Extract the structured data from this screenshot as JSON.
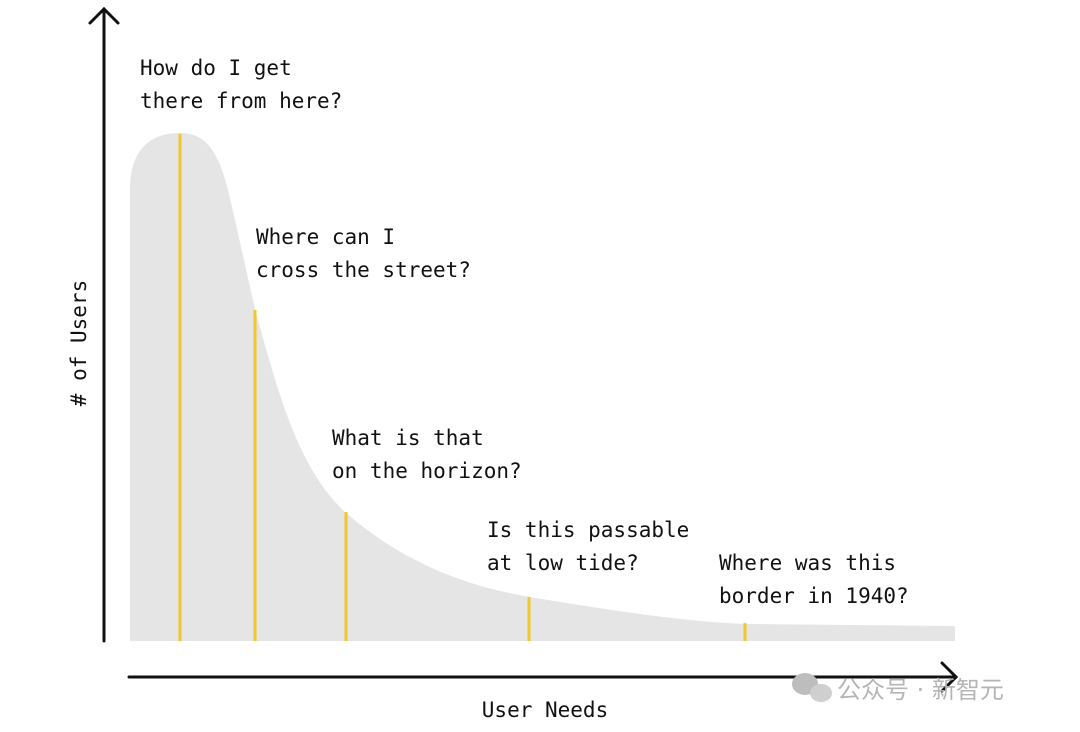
{
  "axes": {
    "y_label": "# of Users",
    "x_label": "User Needs"
  },
  "annotations": [
    {
      "lines": [
        "How do I get",
        "there from here?"
      ]
    },
    {
      "lines": [
        "Where can I",
        "cross the street?"
      ]
    },
    {
      "lines": [
        "What is that",
        "on the horizon?"
      ]
    },
    {
      "lines": [
        "Is this passable",
        "at low tide?"
      ]
    },
    {
      "lines": [
        "Where was this",
        "border in 1940?"
      ]
    }
  ],
  "watermark": {
    "text": "公众号 · 新智元"
  }
}
